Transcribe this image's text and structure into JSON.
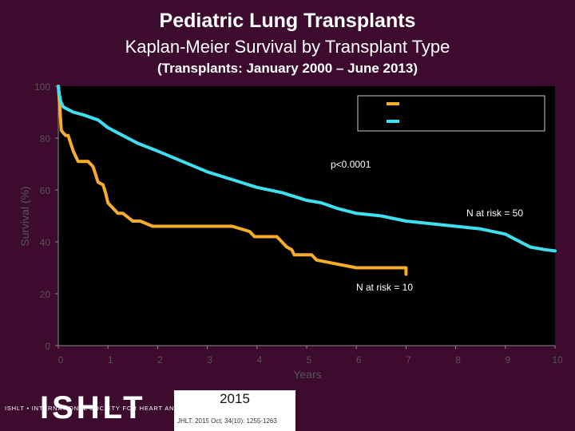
{
  "header": {
    "title": "Pediatric Lung Transplants",
    "subtitle": "Kaplan-Meier Survival by Transplant Type",
    "period": "(Transplants: January 2000 – June 2013)"
  },
  "colors": {
    "background": "#3d0b2d",
    "plot_background": "#000000",
    "series_orange": "#f6ad2b",
    "series_cyan": "#3ee0ef"
  },
  "chart_data": {
    "type": "line",
    "xlabel": "Years",
    "ylabel": "Survival (%)",
    "xlim": [
      0,
      10
    ],
    "ylim": [
      0,
      100
    ],
    "x_ticks": [
      "0",
      "1",
      "2",
      "3",
      "4",
      "5",
      "6",
      "7",
      "8",
      "9",
      "10"
    ],
    "y_ticks": [
      "0",
      "20",
      "40",
      "60",
      "80",
      "100"
    ],
    "grid": false,
    "legend": {
      "position": "top-right",
      "entries": [
        "",
        ""
      ]
    },
    "annotations": {
      "p_value": "p<0.0001",
      "risk_cyan": "N at risk = 50",
      "risk_orange": "N at risk = 10"
    },
    "series": [
      {
        "name": "",
        "color": "#f6ad2b",
        "x": [
          0,
          0.03,
          0.06,
          0.1,
          0.15,
          0.2,
          0.25,
          0.3,
          0.4,
          0.45,
          0.5,
          0.6,
          0.65,
          0.7,
          0.75,
          0.8,
          0.9,
          0.95,
          1.0,
          1.05,
          1.1,
          1.2,
          1.3,
          1.5,
          1.65,
          1.9,
          2.4,
          2.7,
          3.0,
          3.5,
          3.85,
          3.95,
          4.4,
          4.5,
          4.6,
          4.7,
          4.75,
          5.1,
          5.2,
          6.0,
          7.0,
          7.0,
          7.0
        ],
        "y": [
          100,
          92,
          83,
          82,
          81,
          81,
          78,
          75,
          71,
          71,
          71,
          71,
          70,
          69,
          66,
          63,
          62,
          59,
          55,
          54,
          53,
          51,
          51,
          48,
          48,
          46,
          46,
          46,
          46,
          46,
          44,
          42,
          42,
          40,
          38,
          37,
          35,
          35,
          33,
          30,
          30,
          30,
          27.5
        ]
      },
      {
        "name": "",
        "color": "#3ee0ef",
        "x": [
          0,
          0.02,
          0.05,
          0.1,
          0.2,
          0.3,
          0.5,
          0.8,
          1.0,
          1.3,
          1.6,
          2.0,
          2.5,
          3.0,
          3.5,
          4.0,
          4.5,
          5.0,
          5.3,
          5.6,
          6.0,
          6.5,
          7.0,
          7.5,
          8.0,
          8.5,
          9.0,
          9.2,
          9.5,
          9.8,
          10.0
        ],
        "y": [
          100,
          97,
          94,
          92,
          91,
          90,
          89,
          87,
          84,
          81,
          78,
          75,
          71,
          67,
          64,
          61,
          59,
          56,
          55,
          53,
          51,
          50,
          48,
          47,
          46,
          45,
          43,
          41,
          38,
          37,
          36.5
        ]
      }
    ]
  },
  "footer": {
    "logo_text": "ISHLT",
    "logo_subtitle": "ISHLT • INTERNATIONAL SOCIETY FOR HEART AND LUNG TRANSPLANTATION",
    "year": "2015",
    "citation": "JHLT. 2015 Oct; 34(10): 1255-1263"
  }
}
